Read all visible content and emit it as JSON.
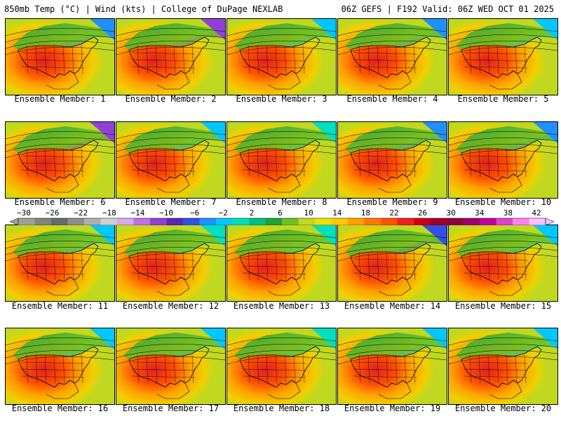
{
  "header": {
    "left_title": "850mb Temp (°C) | Wind (kts) | College of DuPage NEXLAB",
    "right_title": "06Z GEFS | F192 Valid: 06Z WED OCT 01 2025"
  },
  "panels": [
    {
      "caption": "Ensemble Member: 1"
    },
    {
      "caption": "Ensemble Member: 2"
    },
    {
      "caption": "Ensemble Member: 3"
    },
    {
      "caption": "Ensemble Member: 4"
    },
    {
      "caption": "Ensemble Member: 5"
    },
    {
      "caption": "Ensemble Member: 6"
    },
    {
      "caption": "Ensemble Member: 7"
    },
    {
      "caption": "Ensemble Member: 8"
    },
    {
      "caption": "Ensemble Member: 9"
    },
    {
      "caption": "Ensemble Member: 10"
    },
    {
      "caption": "Ensemble Member: 11"
    },
    {
      "caption": "Ensemble Member: 12"
    },
    {
      "caption": "Ensemble Member: 13"
    },
    {
      "caption": "Ensemble Member: 14"
    },
    {
      "caption": "Ensemble Member: 15"
    },
    {
      "caption": "Ensemble Member: 16"
    },
    {
      "caption": "Ensemble Member: 17"
    },
    {
      "caption": "Ensemble Member: 18"
    },
    {
      "caption": "Ensemble Member: 19"
    },
    {
      "caption": "Ensemble Member: 20"
    }
  ],
  "colorbar": {
    "labels": [
      "−30",
      "−26",
      "−22",
      "−18",
      "−14",
      "−10",
      "−6",
      "−2",
      "2",
      "6",
      "10",
      "14",
      "18",
      "22",
      "26",
      "30",
      "34",
      "38",
      "42"
    ],
    "colors": [
      "#9aa29c",
      "#7e8680",
      "#666c68",
      "#8c8c8c",
      "#b0b0b0",
      "#d0d0d0",
      "#d8a8f0",
      "#c070e8",
      "#9040d8",
      "#5a28b8",
      "#3050e8",
      "#1e90ff",
      "#00c8ff",
      "#00e0c0",
      "#00c080",
      "#20a040",
      "#70c020",
      "#c0d820",
      "#f0e000",
      "#ffc800",
      "#ffa000",
      "#ff7800",
      "#ff5000",
      "#f02020",
      "#d00010",
      "#a00020",
      "#900040",
      "#a00070",
      "#c000a0",
      "#e040d0",
      "#ff80f0",
      "#ffc0ff"
    ]
  }
}
